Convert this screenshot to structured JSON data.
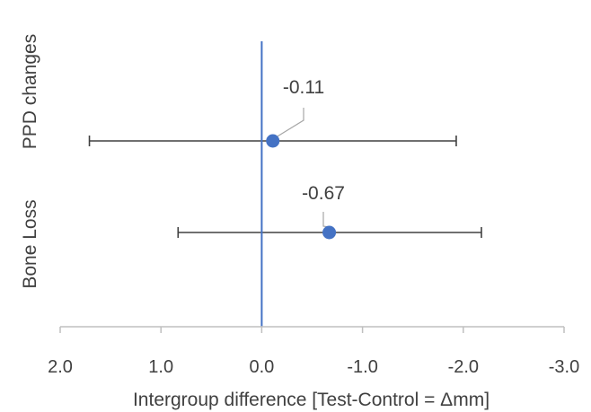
{
  "chart_data": {
    "type": "scatter",
    "orientation": "horizontal",
    "x_reversed": true,
    "xlim": [
      2.0,
      -3.0
    ],
    "xticks": [
      {
        "value": 2.0,
        "label": "2.0"
      },
      {
        "value": 1.0,
        "label": "1.0"
      },
      {
        "value": 0.0,
        "label": "0.0"
      },
      {
        "value": -1.0,
        "label": "-1.0"
      },
      {
        "value": -2.0,
        "label": "-2.0"
      },
      {
        "value": -3.0,
        "label": "-3.0"
      }
    ],
    "xlabel": "Intergroup difference [Test-Control = Δmm]",
    "categories": [
      "PPD changes",
      "Bone Loss"
    ],
    "points": [
      {
        "category": "PPD changes",
        "value": -0.11,
        "ci_low": -1.93,
        "ci_high": 1.71,
        "label": "-0.11"
      },
      {
        "category": "Bone Loss",
        "value": -0.67,
        "ci_low": -2.18,
        "ci_high": 0.83,
        "label": "-0.67"
      }
    ],
    "reference_line": 0.0,
    "colors": {
      "point": "#4472c4",
      "reference": "#4472c4",
      "errorbar": "#404040",
      "axis": "#bfbfbf",
      "text": "#404040"
    },
    "grid": false,
    "legend": "none"
  }
}
